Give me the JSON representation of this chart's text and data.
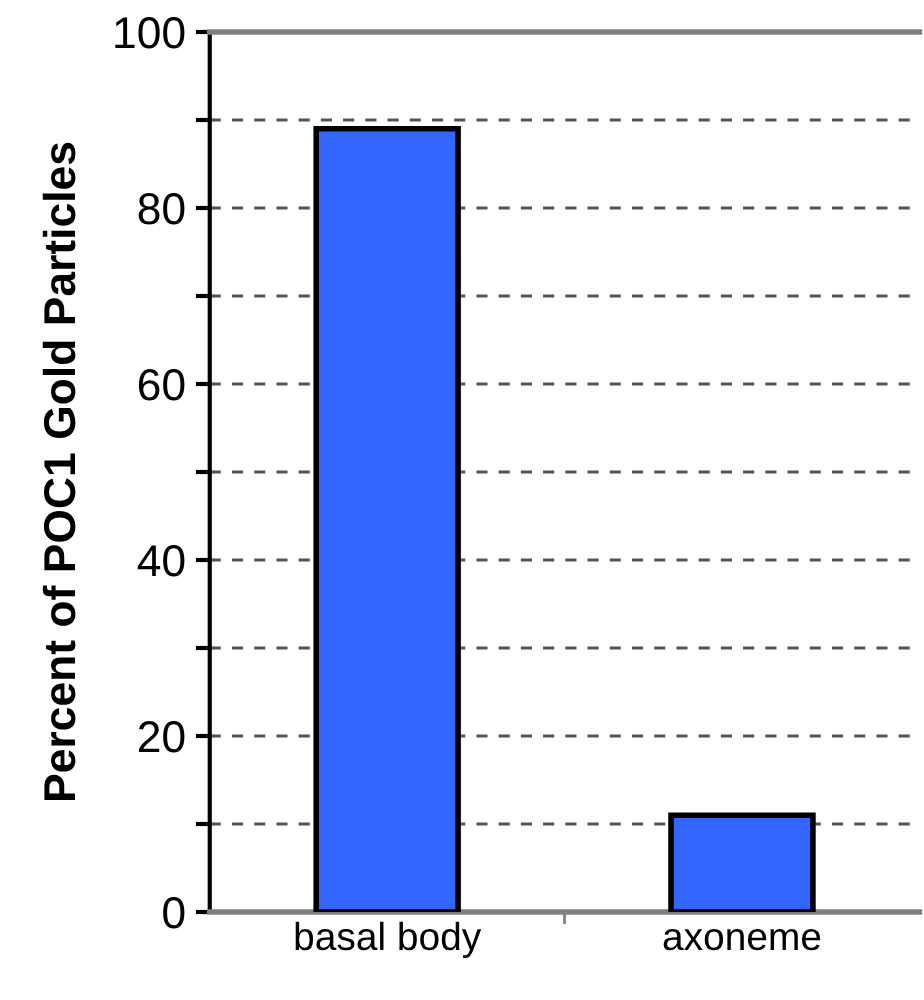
{
  "chart_data": {
    "type": "bar",
    "ylabel": "Percent of POC1 Gold Particles",
    "categories": [
      "basal body",
      "axoneme"
    ],
    "values": [
      89,
      11
    ],
    "color": "#3366ff",
    "ylim": [
      0,
      100
    ],
    "yticks": [
      0,
      {
        "value": 10,
        "label": null
      },
      20,
      {
        "value": 30,
        "label": null
      },
      40,
      {
        "value": 50,
        "label": null
      },
      60,
      {
        "value": 70,
        "label": null
      },
      80,
      {
        "value": 90,
        "label": null
      },
      100
    ],
    "grid": "y"
  }
}
